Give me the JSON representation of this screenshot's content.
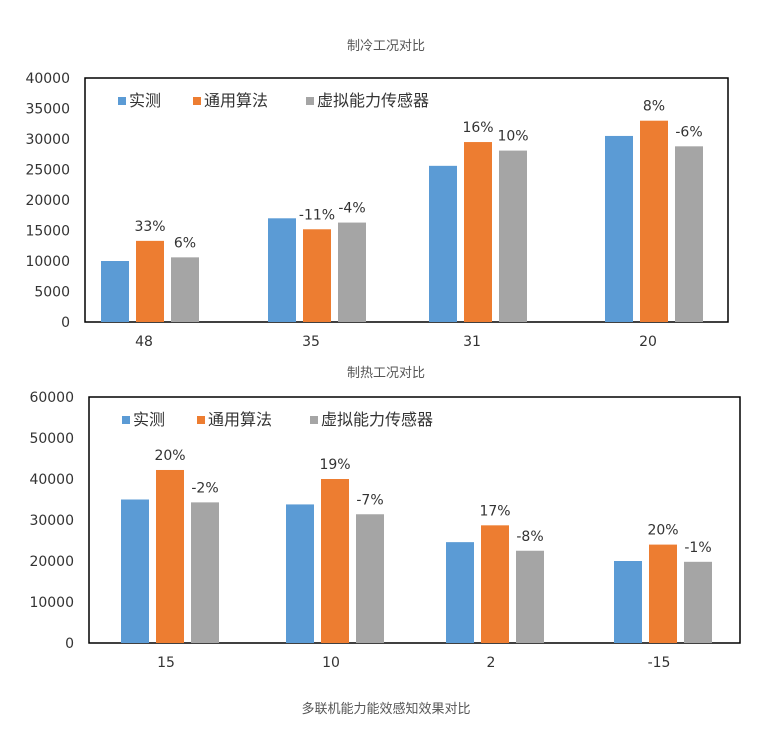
{
  "caption": "多联机能力能效感知效果对比",
  "colors": {
    "measured": "#5b9bd5",
    "general": "#ed7d31",
    "virtual": "#a5a5a5"
  },
  "chart_data": [
    {
      "type": "bar",
      "title": "制冷工况对比",
      "categories": [
        "48",
        "35",
        "31",
        "20"
      ],
      "ylim": [
        0,
        40000
      ],
      "yticks": [
        0,
        5000,
        10000,
        15000,
        20000,
        25000,
        30000,
        35000,
        40000
      ],
      "grid": false,
      "legend": "top-left",
      "series": [
        {
          "name": "实测",
          "values": [
            10000,
            17000,
            25600,
            30500
          ]
        },
        {
          "name": "通用算法",
          "values": [
            13300,
            15200,
            29500,
            33000
          ]
        },
        {
          "name": "虚拟能力传感器",
          "values": [
            10600,
            16300,
            28100,
            28800
          ]
        }
      ],
      "labels": {
        "通用算法": [
          "33%",
          "-11%",
          "16%",
          "8%"
        ],
        "虚拟能力传感器": [
          "6%",
          "-4%",
          "10%",
          "-6%"
        ]
      }
    },
    {
      "type": "bar",
      "title": "制热工况对比",
      "categories": [
        "15",
        "10",
        "2",
        "-15"
      ],
      "ylim": [
        0,
        60000
      ],
      "yticks": [
        0,
        10000,
        20000,
        30000,
        40000,
        50000,
        60000
      ],
      "grid": false,
      "legend": "top-left",
      "series": [
        {
          "name": "实测",
          "values": [
            35000,
            33800,
            24600,
            20000
          ]
        },
        {
          "name": "通用算法",
          "values": [
            42200,
            40000,
            28700,
            24000
          ]
        },
        {
          "name": "虚拟能力传感器",
          "values": [
            34300,
            31400,
            22500,
            19800
          ]
        }
      ],
      "labels": {
        "通用算法": [
          "20%",
          "19%",
          "17%",
          "20%"
        ],
        "虚拟能力传感器": [
          "-2%",
          "-7%",
          "-8%",
          "-1%"
        ]
      }
    }
  ]
}
